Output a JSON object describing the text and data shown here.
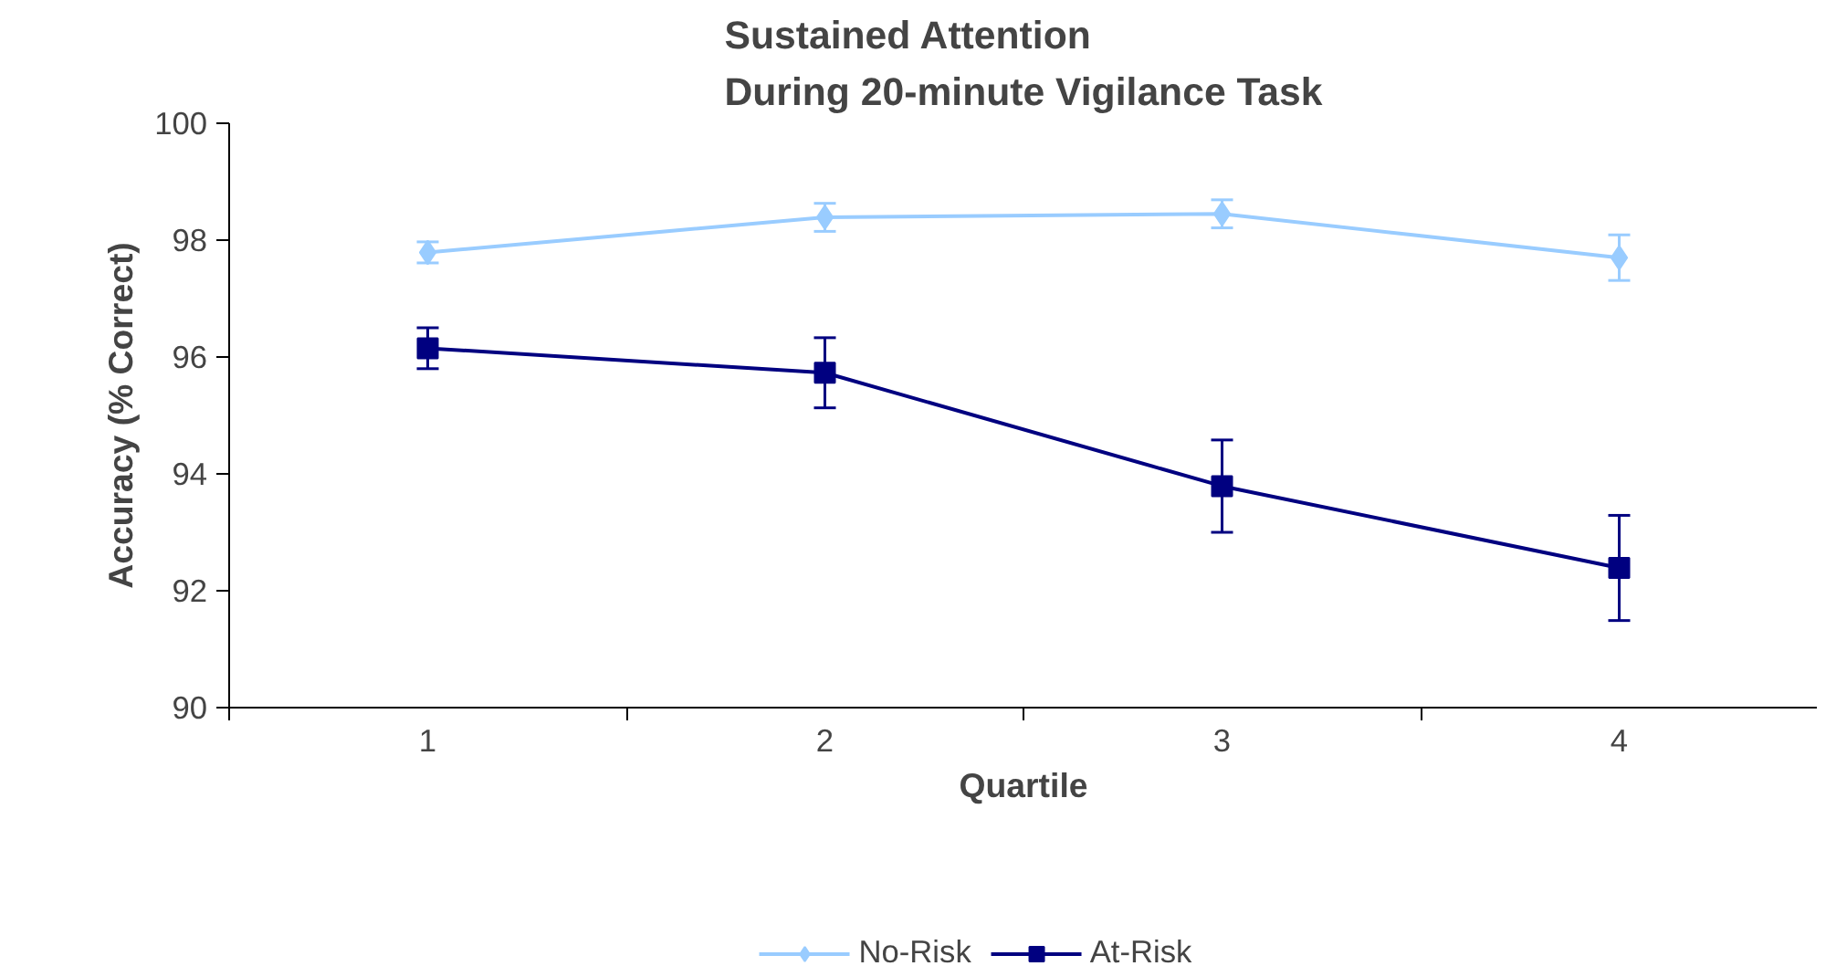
{
  "chart_data": {
    "type": "line",
    "title": "Sustained Attention\nDuring 20-minute Vigilance Task",
    "xlabel": "Quartile",
    "ylabel": "Accuracy (% Correct)",
    "categories": [
      "1",
      "2",
      "3",
      "4"
    ],
    "ylim": [
      90,
      100
    ],
    "yticks": [
      90,
      92,
      94,
      96,
      98,
      100
    ],
    "grid": false,
    "legend": "bottom",
    "series": [
      {
        "name": "No-Risk",
        "color": "#99ccff",
        "marker": "diamond",
        "values": [
          97.79,
          98.39,
          98.45,
          97.7
        ],
        "errors": [
          0.18,
          0.24,
          0.24,
          0.39
        ]
      },
      {
        "name": "At-Risk",
        "color": "#000080",
        "marker": "square",
        "values": [
          96.15,
          95.73,
          93.79,
          92.39
        ],
        "errors": [
          0.35,
          0.6,
          0.79,
          0.9
        ]
      }
    ]
  }
}
